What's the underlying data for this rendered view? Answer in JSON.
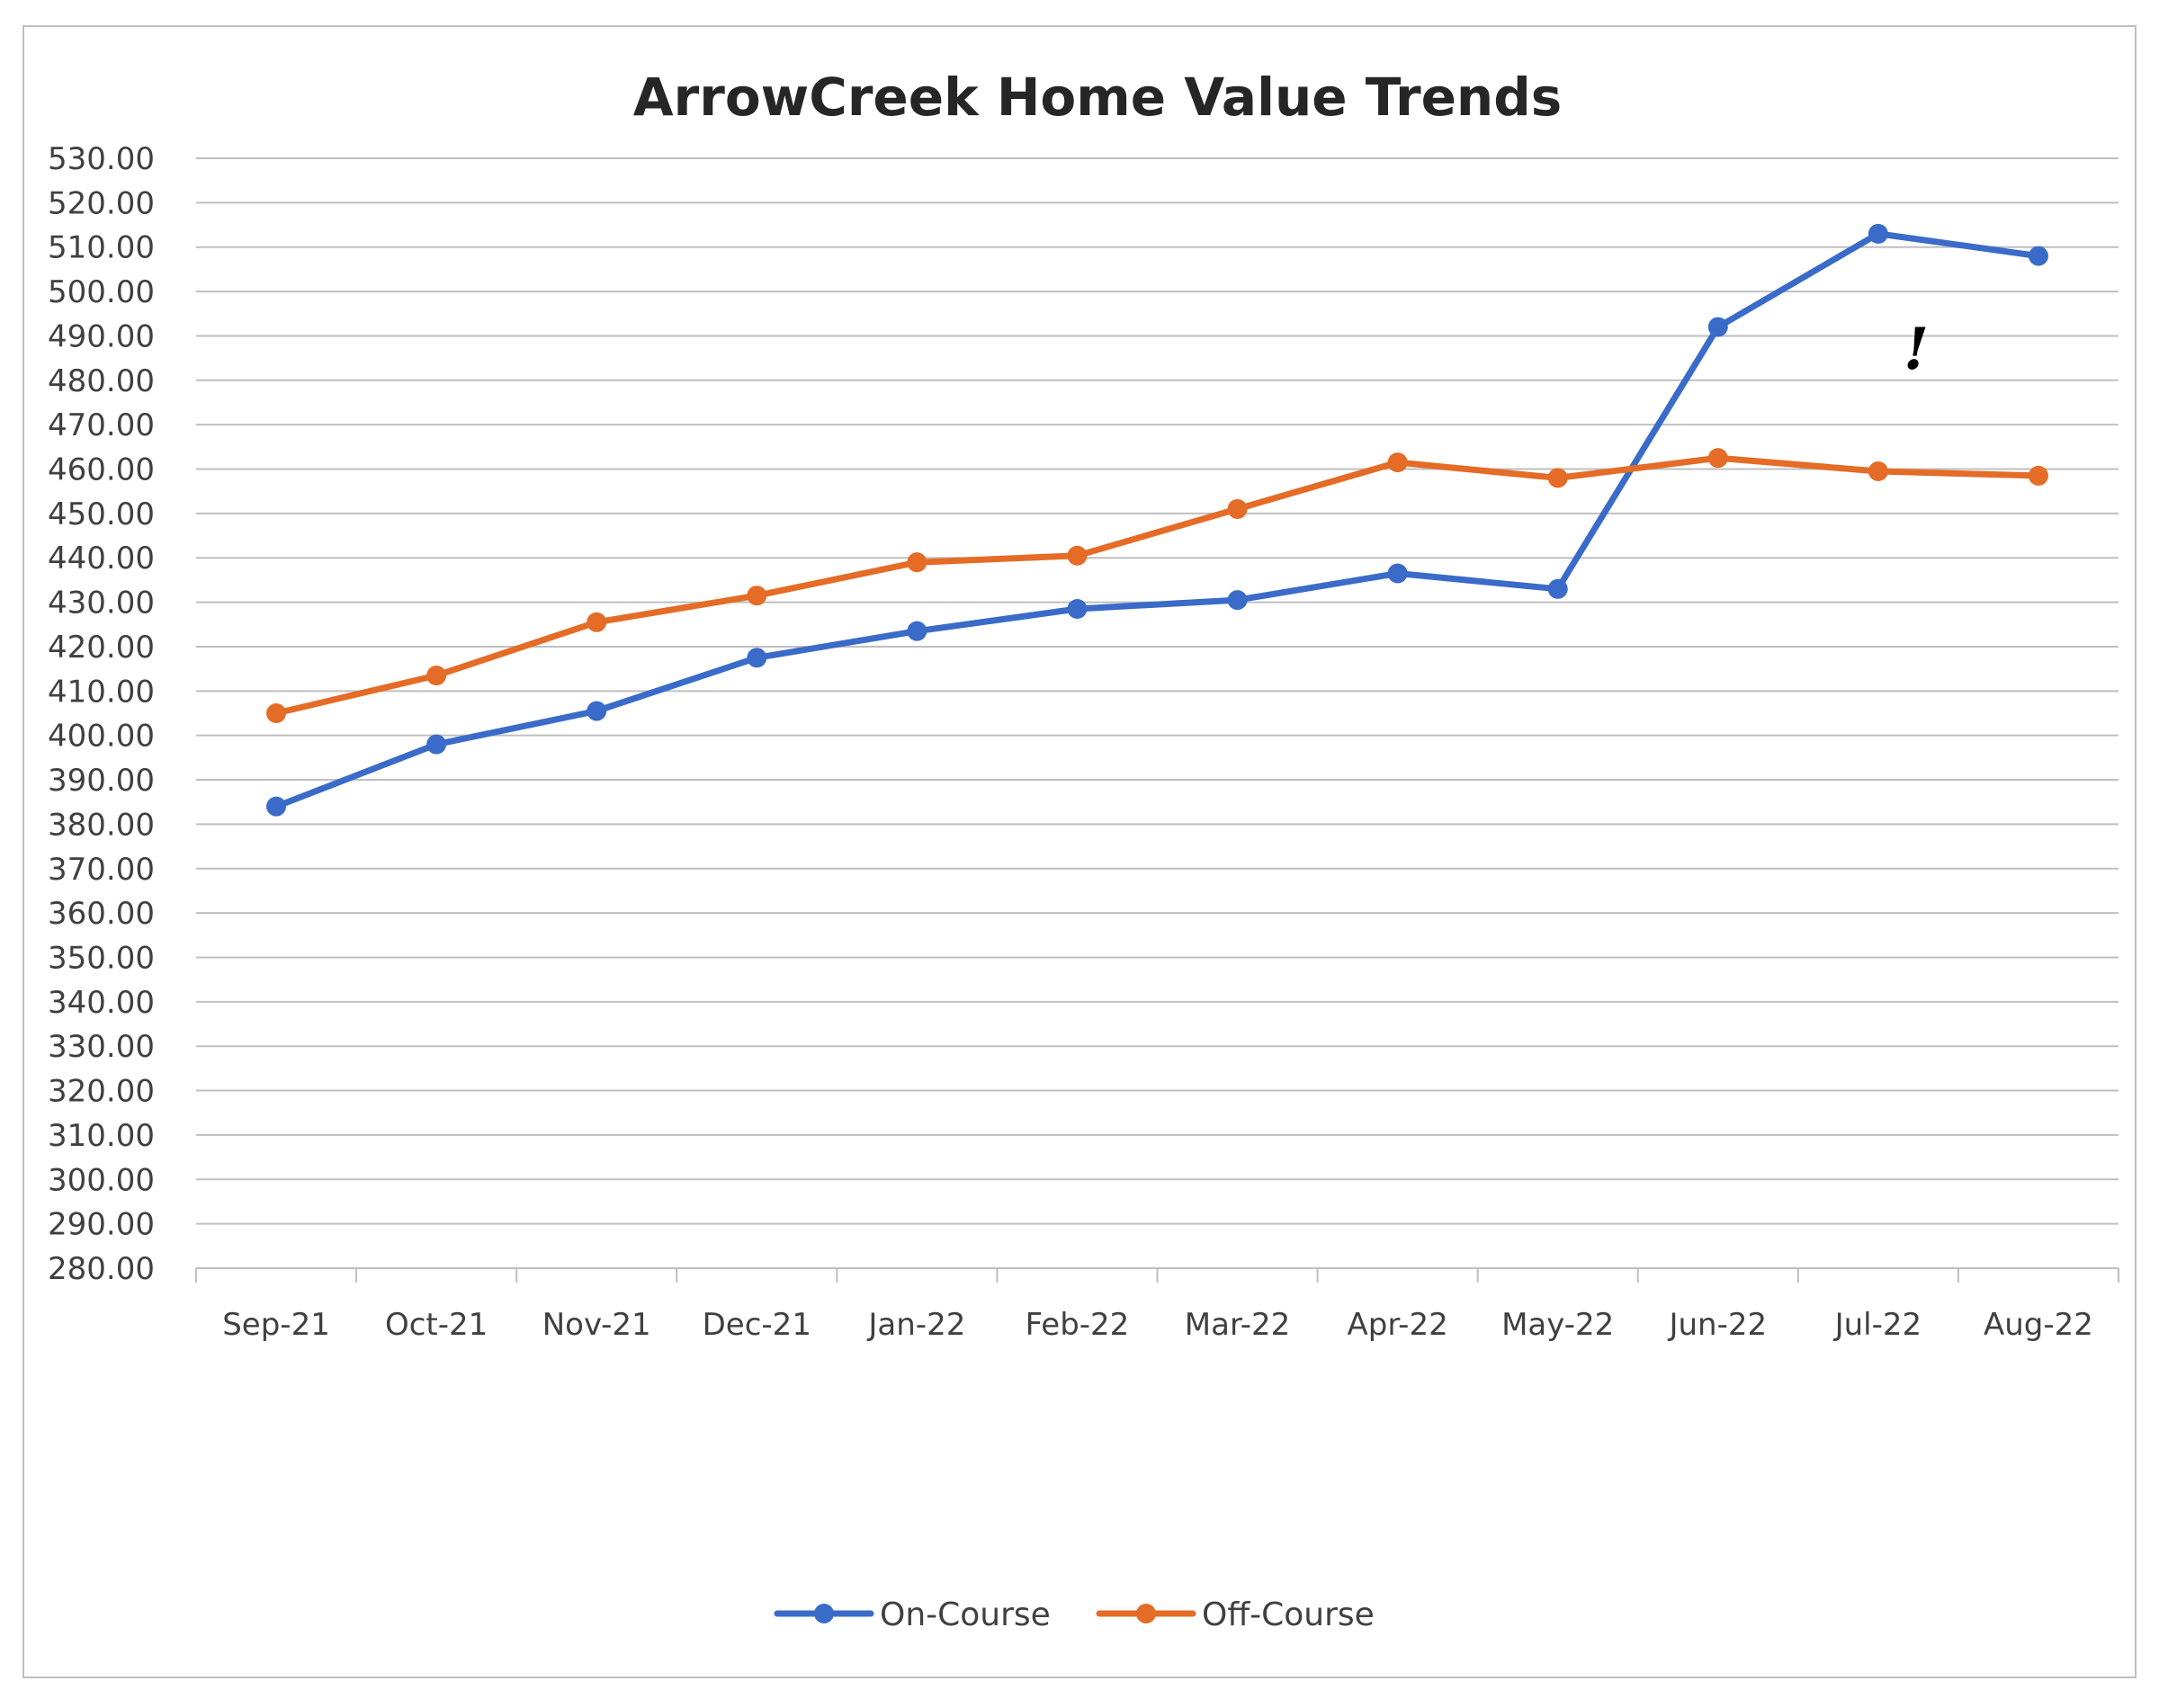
{
  "chart_data": {
    "type": "line",
    "title": "ArrowCreek Home Value Trends",
    "xlabel": "",
    "ylabel": "",
    "categories": [
      "Sep-21",
      "Oct-21",
      "Nov-21",
      "Dec-21",
      "Jan-22",
      "Feb-22",
      "Mar-22",
      "Apr-22",
      "May-22",
      "Jun-22",
      "Jul-22",
      "Aug-22"
    ],
    "series": [
      {
        "name": "On-Course",
        "color": "#3a6bc9",
        "values": [
          384,
          398,
          405.5,
          417.5,
          423.5,
          428.5,
          430.5,
          436.5,
          433,
          492,
          513,
          508
        ]
      },
      {
        "name": "Off-Course",
        "color": "#e46c27",
        "values": [
          405,
          413.5,
          425.5,
          431.5,
          439,
          440.5,
          451,
          461.5,
          458,
          462.5,
          459.5,
          458.5
        ]
      }
    ],
    "ylim": [
      280,
      530
    ],
    "ytick_step": 10,
    "ytick_labels": [
      "530.00",
      "520.00",
      "510.00",
      "500.00",
      "490.00",
      "480.00",
      "470.00",
      "460.00",
      "450.00",
      "440.00",
      "430.00",
      "420.00",
      "410.00",
      "400.00",
      "390.00",
      "380.00",
      "370.00",
      "360.00",
      "350.00",
      "340.00",
      "330.00",
      "320.00",
      "310.00",
      "300.00",
      "290.00",
      "280.00"
    ],
    "grid": true,
    "legend_position": "bottom",
    "annotation": "!"
  }
}
